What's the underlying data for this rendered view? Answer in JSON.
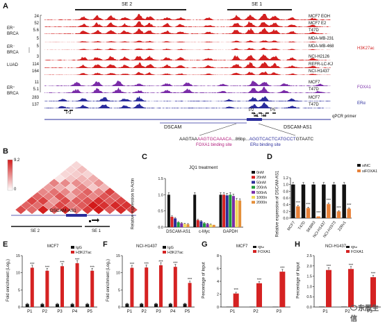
{
  "panelA": {
    "letter": "A",
    "super_enhancers": [
      "SE 2",
      "SE 1"
    ],
    "scales": [
      "24",
      "52",
      "5.6",
      "5",
      "5",
      "3",
      "114",
      "164",
      "11",
      "5.1",
      "283",
      "137"
    ],
    "group_labels": [
      {
        "lines": [
          "ER⁺",
          "BRCA"
        ]
      },
      {
        "lines": [
          "ER⁻",
          "BRCA"
        ]
      },
      {
        "lines": [
          "LUAD"
        ]
      },
      {
        "lines": [
          "ER⁺",
          "BRCA"
        ]
      }
    ],
    "tracks": [
      {
        "cell": "MCF7 EOH",
        "color": "#d32020",
        "type": "h3k"
      },
      {
        "cell": "MCF7 E2",
        "color": "#d32020",
        "type": "h3k"
      },
      {
        "cell": "T47D",
        "color": "#d32020",
        "type": "h3k"
      },
      {
        "cell": "MDA-MB-231",
        "color": "#d32020",
        "type": "h3k"
      },
      {
        "cell": "MDA-MB-468",
        "color": "#d32020",
        "type": "h3k"
      },
      {
        "cell": "NCI-H2126",
        "color": "#d32020",
        "type": "h3k"
      },
      {
        "cell": "REFR-LC-KJ",
        "color": "#d32020",
        "type": "h3k"
      },
      {
        "cell": "NCI-H1437",
        "color": "#d32020",
        "type": "h3k"
      },
      {
        "cell": "MCF7",
        "color": "#7a2da8",
        "type": "foxa"
      },
      {
        "cell": "T47D",
        "color": "#7a2da8",
        "type": "foxa"
      },
      {
        "cell": "MCF7",
        "color": "#2a2c9c",
        "type": "er"
      },
      {
        "cell": "T47D",
        "color": "#2a2c9c",
        "type": "er"
      }
    ],
    "mark_labels": {
      "h3k27ac": "H3K27ac",
      "foxa1": "FOXA1",
      "era": "ERα"
    },
    "primer_labels": [
      "P3",
      "P2",
      "P5",
      "P1",
      "P4"
    ],
    "qpcr_label": "qPCR primer",
    "genes": [
      "DSCAM",
      "DSCAM-AS1"
    ],
    "sequence": {
      "pre": "AAGTAA",
      "foxa": "AAGTGCAAACA",
      "mid": "...86bp...",
      "er": "AGGTCACTCATGCCT",
      "post": "GTAATC"
    },
    "site_labels": [
      "FOXA1 binding site",
      "ERα binding site"
    ],
    "colors": {
      "h3k": "#d32020",
      "foxa": "#7a2da8",
      "er": "#2a2c9c"
    }
  },
  "panelB": {
    "letter": "B",
    "scale_max": "9.2",
    "scale_min": "0",
    "gene": "DSCAM-AS1",
    "se_labels": [
      "SE 2",
      "SE 1"
    ]
  },
  "panelC": {
    "letter": "C",
    "title": "JQ1 treatment",
    "ylabel": "Relative expression to Actin",
    "chart_data": {
      "type": "bar",
      "categories": [
        "DSCAM-AS1",
        "c-Myc",
        "GAPDH"
      ],
      "series": [
        {
          "name": "0nM",
          "color": "#111111",
          "values": [
            1.0,
            1.0,
            1.0
          ]
        },
        {
          "name": "20nM",
          "color": "#d52222",
          "values": [
            0.32,
            0.22,
            1.0
          ]
        },
        {
          "name": "50nM",
          "color": "#2d2d9a",
          "values": [
            0.27,
            0.18,
            0.98
          ]
        },
        {
          "name": "200nM",
          "color": "#1f9b3a",
          "values": [
            0.15,
            0.12,
            1.0
          ]
        },
        {
          "name": "500nM",
          "color": "#7a2da8",
          "values": [
            0.12,
            0.1,
            0.96
          ]
        },
        {
          "name": "1000nM",
          "color": "#f0d95a",
          "values": [
            0.1,
            0.08,
            0.83
          ]
        },
        {
          "name": "2000nM",
          "color": "#e5903a",
          "values": [
            0.09,
            0.07,
            0.82
          ]
        }
      ],
      "yticks": [
        "0.0",
        "0.5",
        "1.0",
        "1.5"
      ],
      "ylim": [
        0,
        1.5
      ]
    }
  },
  "panelD": {
    "letter": "D",
    "ylabel": "Relative expression of DSCAM-AS1",
    "chart_data": {
      "type": "bar",
      "categories": [
        "MCF7",
        "T47D",
        "SKBR3",
        "NCI-H1437",
        "NCI-H1573",
        "22Rv1"
      ],
      "series": [
        {
          "name": "siNC",
          "color": "#111111",
          "values": [
            1.0,
            1.0,
            1.0,
            1.0,
            1.0,
            1.0
          ]
        },
        {
          "name": "siFOXA1",
          "color": "#e8823a",
          "values": [
            0.35,
            0.3,
            0.05,
            0.42,
            0.2,
            0.28
          ]
        }
      ],
      "yticks": [
        "0.0",
        "0.2",
        "0.4",
        "0.6",
        "0.8",
        "1.0",
        "1.2"
      ],
      "ylim": [
        0,
        1.2
      ],
      "stars": [
        "***",
        "***",
        "***",
        "***",
        "***",
        "***"
      ]
    }
  },
  "panelE": {
    "letter": "E",
    "title": "MCF7",
    "ylabel": "Fold enrichment (Log₂)",
    "chart_data": {
      "type": "bar",
      "categories": [
        "P1",
        "P2",
        "P3",
        "P4",
        "P5"
      ],
      "series": [
        {
          "name": "IgG",
          "color": "#111111",
          "values": [
            1,
            1,
            1,
            1,
            1
          ]
        },
        {
          "name": "H3K27ac",
          "color": "#d52222",
          "values": [
            13,
            12,
            13.5,
            14.5,
            12
          ]
        }
      ],
      "yticks": [
        "0",
        "5",
        "10",
        "15"
      ],
      "ylim": [
        0,
        17
      ],
      "stars": "***"
    }
  },
  "panelF": {
    "letter": "F",
    "title": "NCI-H1437",
    "ylabel": "Fold enrichment (Log₂)",
    "chart_data": {
      "type": "bar",
      "categories": [
        "P1",
        "P2",
        "P3",
        "P4",
        "P5"
      ],
      "series": [
        {
          "name": "IgG",
          "color": "#111111",
          "values": [
            1,
            1,
            1,
            1,
            1
          ]
        },
        {
          "name": "H3K27ac",
          "color": "#d52222",
          "values": [
            12.2,
            12.3,
            13,
            12.5,
            7.5
          ]
        }
      ],
      "yticks": [
        "0",
        "5",
        "10",
        "15"
      ],
      "ylim": [
        0,
        16
      ],
      "stars": "***"
    }
  },
  "panelG": {
    "letter": "G",
    "title": "MCF7",
    "ylabel": "Percentage of Input",
    "chart_data": {
      "type": "bar",
      "categories": [
        "P1",
        "P2",
        "P3"
      ],
      "series": [
        {
          "name": "IgG",
          "color": "#111111",
          "values": [
            0.05,
            0.05,
            0.05
          ]
        },
        {
          "name": "FOXA1",
          "color": "#d52222",
          "values": [
            2.1,
            3.7,
            5.5
          ]
        }
      ],
      "yticks": [
        "0",
        "2",
        "4",
        "6",
        "8"
      ],
      "ylim": [
        0,
        8
      ],
      "stars": "***"
    }
  },
  "panelH": {
    "letter": "H",
    "title": "NCI-H1437",
    "ylabel": "Percentage of Input",
    "chart_data": {
      "type": "bar",
      "categories": [
        "P1",
        "P2",
        "P3"
      ],
      "series": [
        {
          "name": "IgG",
          "color": "#111111",
          "values": [
            0.02,
            0.02,
            0.02
          ]
        },
        {
          "name": "FOXA1",
          "color": "#d52222",
          "values": [
            1.8,
            1.85,
            1.45
          ]
        }
      ],
      "yticks": [
        "0.0",
        "0.5",
        "1.0",
        "1.5",
        "2.0",
        "2.5"
      ],
      "ylim": [
        0,
        2.5
      ],
      "stars": "***"
    }
  },
  "watermark": "东辰生信"
}
